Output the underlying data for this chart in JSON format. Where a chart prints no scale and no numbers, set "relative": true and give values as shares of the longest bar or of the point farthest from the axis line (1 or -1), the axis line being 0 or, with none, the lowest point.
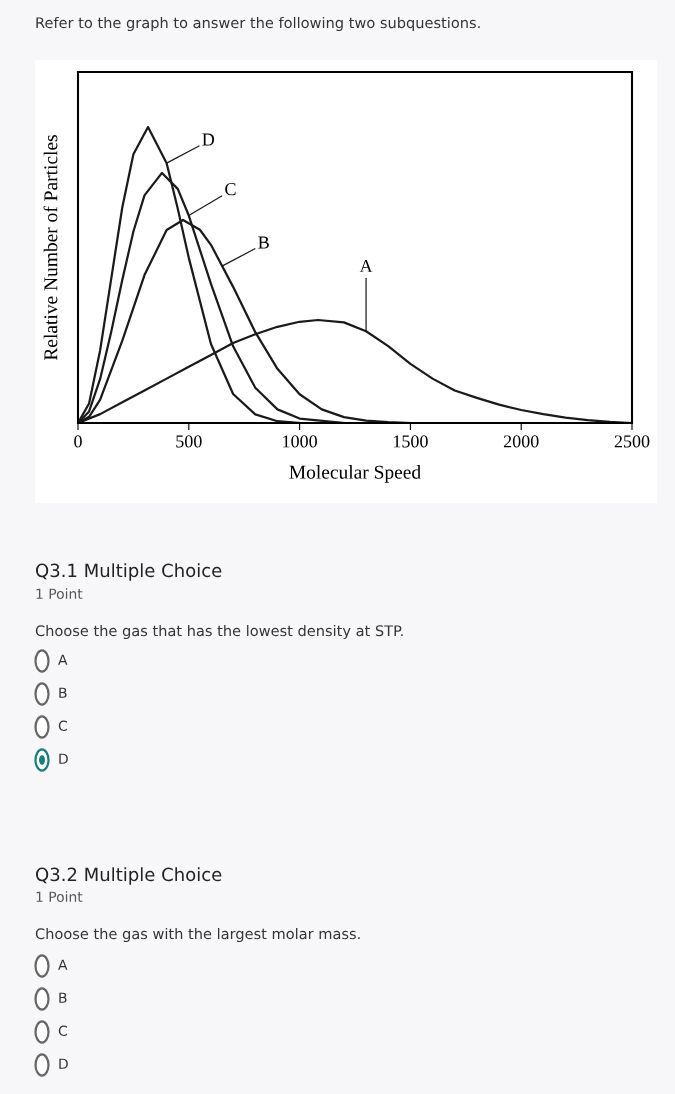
{
  "chart_data": {
    "type": "line",
    "relative": true,
    "title": "Refer to the graph to answer the following two subquestions.",
    "xlabel": "Molecular Speed",
    "ylabel": "Relative Number of Particles",
    "xlim": [
      0,
      2500
    ],
    "xticks": [
      0,
      500,
      1000,
      1500,
      2000,
      2500
    ],
    "tick_labels": "x",
    "grid": false,
    "legend": false,
    "marker": "none",
    "line_style": "solid",
    "series": [
      {
        "color": "#1a1a1a",
        "x": [
          0,
          100,
          200,
          300,
          400,
          500,
          600,
          700,
          800,
          900,
          1000,
          1083,
          1200,
          1300,
          1400,
          1500,
          1600,
          1700,
          1800,
          1900,
          2000,
          2100,
          2200,
          2300,
          2400,
          2500
        ],
        "values": [
          0,
          0.03,
          0.07,
          0.11,
          0.15,
          0.19,
          0.23,
          0.27,
          0.3,
          0.325,
          0.342,
          0.348,
          0.34,
          0.31,
          0.26,
          0.2,
          0.15,
          0.11,
          0.085,
          0.062,
          0.044,
          0.03,
          0.018,
          0.01,
          0.004,
          0
        ]
      },
      {
        "color": "#1a1a1a",
        "x": [
          0,
          50,
          100,
          200,
          300,
          400,
          474,
          550,
          600,
          700,
          800,
          900,
          1000,
          1100,
          1200,
          1300,
          1400,
          1500
        ],
        "values": [
          0,
          0.021,
          0.079,
          0.278,
          0.5,
          0.652,
          0.686,
          0.653,
          0.602,
          0.46,
          0.307,
          0.183,
          0.097,
          0.046,
          0.02,
          0.008,
          0.003,
          0
        ]
      },
      {
        "color": "#1a1a1a",
        "x": [
          0,
          50,
          100,
          150,
          200,
          250,
          300,
          379,
          450,
          500,
          600,
          700,
          800,
          900,
          1000,
          1200
        ],
        "values": [
          0,
          0.039,
          0.149,
          0.308,
          0.484,
          0.647,
          0.769,
          0.845,
          0.791,
          0.701,
          0.47,
          0.259,
          0.119,
          0.046,
          0.015,
          0
        ]
      },
      {
        "color": "#1a1a1a",
        "x": [
          0,
          50,
          100,
          150,
          200,
          250,
          316,
          400,
          450,
          500,
          600,
          700,
          800,
          900,
          1000
        ],
        "values": [
          0,
          0.066,
          0.246,
          0.488,
          0.729,
          0.908,
          1.0,
          0.878,
          0.725,
          0.558,
          0.267,
          0.098,
          0.029,
          0.006,
          0
        ]
      }
    ],
    "annotations": [
      {
        "text": "A",
        "x": 1300,
        "y": 0.31
      },
      {
        "text": "B",
        "x": 650,
        "y": 0.53
      },
      {
        "text": "C",
        "x": 500,
        "y": 0.701
      },
      {
        "text": "D",
        "x": 400,
        "y": 0.878
      },
      "Q3.1 Multiple Choice",
      "1 Point",
      "Choose the gas that has the lowest density at STP.",
      "A",
      "B",
      "C",
      "D",
      "Q3.2 Multiple Choice",
      "1 Point",
      "Choose the gas with the largest molar mass.",
      "A",
      "B",
      "C",
      "D"
    ]
  }
}
